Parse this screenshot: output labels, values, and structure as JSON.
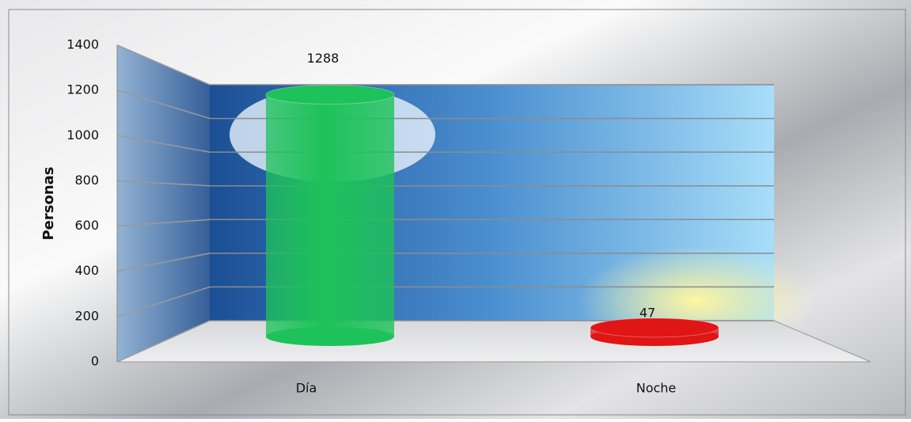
{
  "chart_data": {
    "type": "bar",
    "y_label": "Personas",
    "categories": [
      "Día",
      "Noche"
    ],
    "values": [
      1288,
      47
    ],
    "colors": [
      "#1dc25a",
      "#e01515"
    ],
    "ylim": [
      0,
      1400
    ],
    "yticks": [
      0,
      200,
      400,
      600,
      800,
      1000,
      1200,
      1400
    ],
    "grid": true
  }
}
